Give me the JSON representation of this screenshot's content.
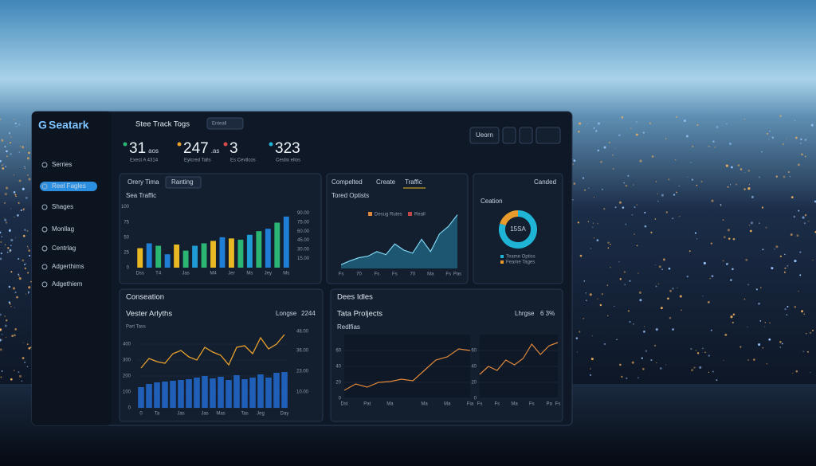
{
  "header": {
    "brand": "Seatark",
    "title": "Stee Track Togs",
    "button": "Enteall",
    "action": "Ueorn"
  },
  "sidebar": {
    "items": [
      "Serries",
      "Reel Fagles",
      "Shages",
      "Monllag",
      "Centrlag",
      "Adgerthims",
      "Adgethiem"
    ]
  },
  "stats": [
    {
      "value": "31",
      "unit": "aos",
      "label": "Exect A 4314"
    },
    {
      "value": "247",
      "unit": ".as",
      "label": "Eylcred Talls"
    },
    {
      "value": "3",
      "label": "Es Cevtlcos"
    },
    {
      "value": "323",
      "label": "Cestio ellos"
    }
  ],
  "panels": {
    "traffic_tabs": [
      "Orery Tima",
      "Ranting"
    ],
    "options_tabs": [
      "Compelted",
      "Create",
      "Traffic"
    ],
    "side_title": "Canded",
    "conversation": "Conseation",
    "deals": "Dees Idles",
    "projects_title": "Tata Proljects",
    "projects_badge": "Lhrgse",
    "projects_value": "6 3%"
  },
  "chart_data": [
    {
      "type": "bar",
      "title": "Sea Traffic",
      "categories": [
        "Dss",
        null,
        "T4",
        null,
        null,
        "Jas",
        null,
        null,
        "M4",
        null,
        "Jer",
        null,
        "Ms",
        null,
        "Jey",
        null,
        "Ms"
      ],
      "values": [
        32,
        40,
        36,
        22,
        38,
        28,
        36,
        40,
        44,
        50,
        48,
        46,
        54,
        60,
        64,
        74,
        84
      ],
      "colors": [
        "#e8b923",
        "#1f7fd6",
        "#2bb673",
        "#1f7fd6",
        "#e8b923",
        "#2bb673",
        "#1f9bd6",
        "#2bb673",
        "#e8b923",
        "#1f7fd6",
        "#e8b923",
        "#2bb673",
        "#1f9bd6",
        "#2bb673",
        "#1f7fd6",
        "#2bb673",
        "#1f7fd6"
      ],
      "ylim": [
        0,
        110
      ],
      "yticks": [
        0,
        25,
        50,
        75,
        100
      ],
      "y2lim": [
        0,
        110
      ],
      "y2ticks": [
        {
          "value": 15,
          "label": "15.00"
        },
        {
          "value": 30,
          "label": "30.00"
        },
        {
          "value": 45,
          "label": "45.00"
        },
        {
          "value": 60,
          "label": "60.00"
        },
        {
          "value": 75,
          "label": "75.00"
        },
        {
          "value": 90,
          "label": "90.00"
        }
      ]
    },
    {
      "type": "area",
      "title": "Tored Optists",
      "color": "#2a9cc0",
      "legend": [
        {
          "name": "Desug Rutes",
          "color": "#e0893a"
        },
        {
          "name": "Reall",
          "color": "#c24848"
        }
      ],
      "categories": [
        "Fs",
        null,
        "70",
        null,
        "Fs",
        null,
        "Fs",
        null,
        "70",
        null,
        "Ma",
        null,
        "Fs",
        "Pas"
      ],
      "values": [
        5,
        10,
        14,
        16,
        22,
        18,
        32,
        24,
        20,
        38,
        22,
        45,
        55,
        70
      ],
      "ylim": [
        0,
        80
      ]
    },
    {
      "type": "donut",
      "title": "Ceation",
      "center_label": "15SA",
      "categories": [
        "Teame Optiss",
        "Feame Tages"
      ],
      "values": [
        80,
        20
      ],
      "colors": [
        "#1fb3d6",
        "#e89a2c"
      ]
    },
    {
      "type": "combo",
      "title": "Vester Arlyths",
      "subtitle": "Part Tass",
      "badge": "Longse",
      "value_label": "2244",
      "bar_color": "#1f5fb8",
      "line_color": "#e8a12c",
      "categories": [
        "0",
        null,
        "Ta",
        null,
        null,
        "Jas",
        null,
        null,
        "Jas",
        null,
        "Mas",
        null,
        null,
        "Tas",
        null,
        "Jeg",
        null,
        null,
        "Day"
      ],
      "bar_values": [
        130,
        150,
        160,
        165,
        170,
        175,
        180,
        190,
        200,
        185,
        195,
        175,
        205,
        180,
        190,
        210,
        190,
        220,
        225
      ],
      "line_values": [
        25,
        31,
        29,
        28,
        34,
        36,
        32,
        30,
        38,
        35,
        33,
        27,
        38,
        39,
        34,
        44,
        37,
        40,
        46
      ],
      "ylim": [
        0,
        500
      ],
      "yticks": [
        0,
        100,
        200,
        300,
        400
      ],
      "y2lim": [
        0,
        50
      ],
      "y2ticks": [
        {
          "value": 10,
          "label": "10.00"
        },
        {
          "value": 23,
          "label": "23.00"
        },
        {
          "value": 36,
          "label": "36.00"
        },
        {
          "value": 48,
          "label": "48.00"
        }
      ]
    },
    {
      "type": "line",
      "title": "Redlfias",
      "color": "#e0893a",
      "categories": [
        "Dst",
        null,
        "Pat",
        null,
        "Ma",
        null,
        null,
        "Ma",
        null,
        "Ma",
        null,
        "Fia"
      ],
      "values": [
        10,
        18,
        14,
        20,
        21,
        24,
        22,
        35,
        48,
        52,
        62,
        60
      ],
      "ylim": [
        0,
        80
      ],
      "yticks": [
        0,
        20,
        40,
        60
      ]
    },
    {
      "type": "line",
      "color": "#e0893a",
      "categories": [
        "Fs",
        null,
        "Fs",
        null,
        "Ma",
        null,
        "Fs",
        null,
        "Pa",
        "Fs"
      ],
      "values": [
        30,
        40,
        35,
        48,
        42,
        50,
        68,
        55,
        66,
        70
      ],
      "ylim": [
        0,
        80
      ],
      "yticks": [
        0,
        20,
        40,
        60
      ]
    }
  ]
}
